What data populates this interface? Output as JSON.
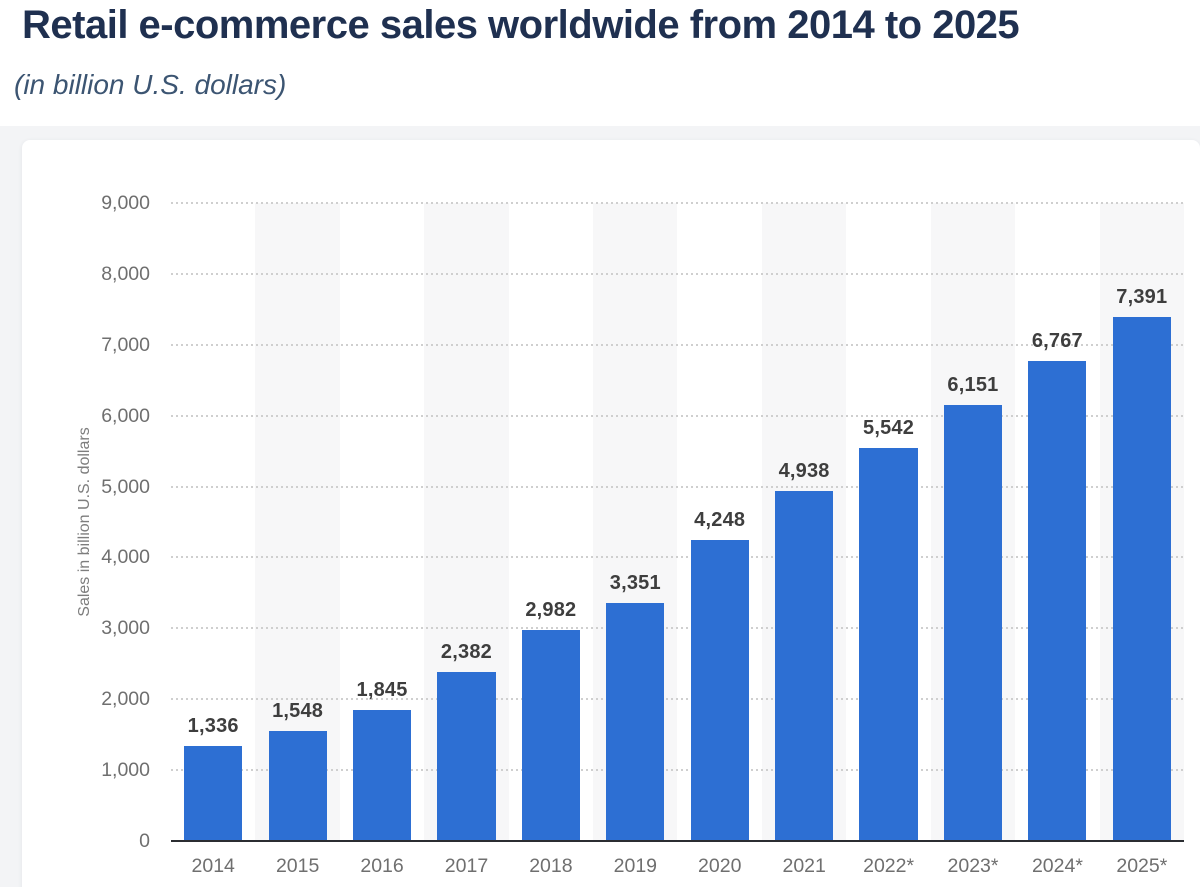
{
  "header": {
    "title": "Retail e-commerce sales worldwide from 2014 to 2025",
    "subtitle": "(in billion U.S. dollars)"
  },
  "chart_data": {
    "type": "bar",
    "title": "Retail e-commerce sales worldwide from 2014 to 2025",
    "subtitle": "(in billion U.S. dollars)",
    "categories": [
      "2014",
      "2015",
      "2016",
      "2017",
      "2018",
      "2019",
      "2020",
      "2021",
      "2022*",
      "2023*",
      "2024*",
      "2025*"
    ],
    "values": [
      1336,
      1548,
      1845,
      2382,
      2982,
      3351,
      4248,
      4938,
      5542,
      6151,
      6767,
      7391
    ],
    "value_labels": [
      "1,336",
      "1,548",
      "1,845",
      "2,382",
      "2,982",
      "3,351",
      "4,248",
      "4,938",
      "5,542",
      "6,151",
      "6,767",
      "7,391"
    ],
    "xlabel": "",
    "ylabel": "Sales in billion U.S. dollars",
    "ylim": [
      0,
      9000
    ],
    "ytick_step": 1000,
    "ytick_labels": [
      "0",
      "1,000",
      "2,000",
      "3,000",
      "4,000",
      "5,000",
      "6,000",
      "7,000",
      "8,000",
      "9,000"
    ],
    "grid": "horizontal-dotted",
    "legend": "none",
    "plot_style": "alternating vertical stripes behind odd columns",
    "colors": {
      "bar": "#2d6fd3",
      "stripe": "#f7f7f8",
      "gridline": "#cfcfcf",
      "axis_line": "#2b2d31",
      "value_label": "#3e3e3e",
      "tick_label": "#6f6f6f",
      "title": "#1f3050",
      "subtitle": "#3c5572"
    }
  }
}
